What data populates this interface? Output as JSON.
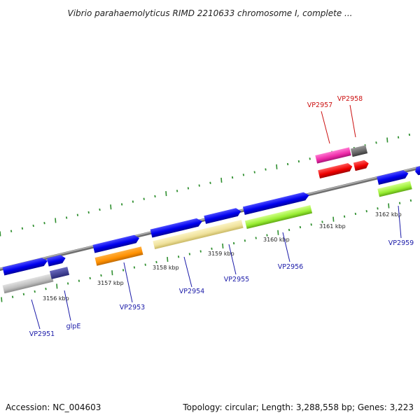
{
  "title": "Vibrio parahaemolyticus RIMD 2210633 chromosome I, complete ...",
  "footer": {
    "accession": "Accession: NC_004603",
    "topology": "Topology: circular; Length: 3,288,558 bp; Genes: 3,223"
  },
  "colors": {
    "backbone": "#8c8c8c",
    "ticks": "#2f8f2f",
    "label_blue": "#1a1aa8",
    "label_red": "#cc1111"
  },
  "kbp_labels": [
    "3156 kbp",
    "3157 kbp",
    "3158 kbp",
    "3159 kbp",
    "3160 kbp",
    "3161 kbp",
    "3162 kbp"
  ],
  "gene_labels": [
    {
      "text": "VP2951",
      "color": "#1a1aa8"
    },
    {
      "text": "glpE",
      "color": "#1a1aa8"
    },
    {
      "text": "VP2953",
      "color": "#1a1aa8"
    },
    {
      "text": "VP2954",
      "color": "#1a1aa8"
    },
    {
      "text": "VP2955",
      "color": "#1a1aa8"
    },
    {
      "text": "VP2956",
      "color": "#1a1aa8"
    },
    {
      "text": "VP2957",
      "color": "#cc1111"
    },
    {
      "text": "VP2958",
      "color": "#cc1111"
    },
    {
      "text": "VP2959",
      "color": "#1a1aa8"
    }
  ]
}
